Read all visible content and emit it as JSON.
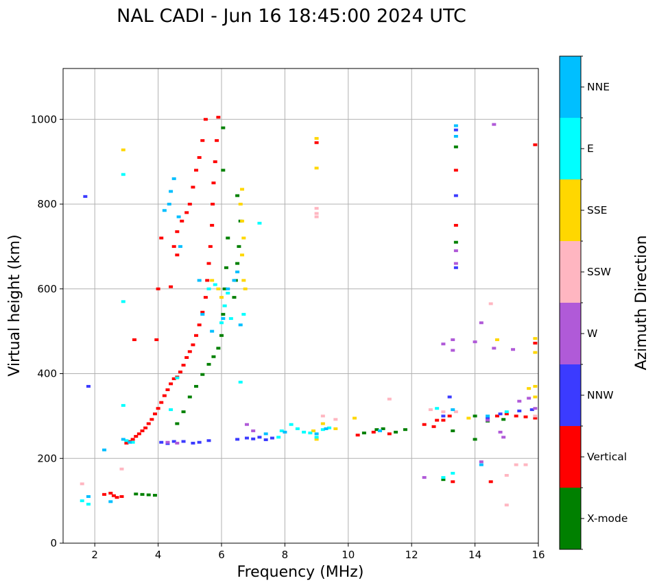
{
  "chart_data": {
    "type": "scatter",
    "title": "NAL CADI - Jun 16 18:45:00 2024 UTC",
    "xlabel": "Frequency (MHz)",
    "ylabel": "Virtual height (km)",
    "xlim": [
      1,
      16
    ],
    "ylim": [
      0,
      1120
    ],
    "xticks": [
      2,
      4,
      6,
      8,
      10,
      12,
      14,
      16
    ],
    "yticks": [
      0,
      200,
      400,
      600,
      800,
      1000
    ],
    "grid": true,
    "colorbar": {
      "label": "Azimuth Direction",
      "categories": [
        {
          "name": "X-mode",
          "color": "#008000"
        },
        {
          "name": "Vertical",
          "color": "#ff0000"
        },
        {
          "name": "NNW",
          "color": "#3b3bff"
        },
        {
          "name": "W",
          "color": "#b05ad8"
        },
        {
          "name": "SSW",
          "color": "#ffb6c1"
        },
        {
          "name": "SSE",
          "color": "#ffd700"
        },
        {
          "name": "E",
          "color": "#00ffff"
        },
        {
          "name": "NNE",
          "color": "#00bfff"
        }
      ]
    },
    "series": [
      {
        "name": "Vertical",
        "color": "#ff0000",
        "points": [
          [
            2.3,
            115
          ],
          [
            2.5,
            118
          ],
          [
            2.6,
            112
          ],
          [
            2.7,
            108
          ],
          [
            2.85,
            110
          ],
          [
            3.0,
            236
          ],
          [
            3.1,
            240
          ],
          [
            3.2,
            245
          ],
          [
            3.3,
            252
          ],
          [
            3.4,
            258
          ],
          [
            3.5,
            265
          ],
          [
            3.6,
            272
          ],
          [
            3.7,
            282
          ],
          [
            3.8,
            292
          ],
          [
            3.9,
            305
          ],
          [
            4.0,
            318
          ],
          [
            4.1,
            332
          ],
          [
            4.2,
            348
          ],
          [
            4.3,
            362
          ],
          [
            4.4,
            376
          ],
          [
            4.5,
            388
          ],
          [
            4.6,
            392
          ],
          [
            4.7,
            404
          ],
          [
            4.8,
            420
          ],
          [
            4.9,
            438
          ],
          [
            5.0,
            452
          ],
          [
            5.1,
            468
          ],
          [
            5.2,
            490
          ],
          [
            5.3,
            515
          ],
          [
            5.4,
            545
          ],
          [
            5.5,
            580
          ],
          [
            5.55,
            620
          ],
          [
            5.6,
            660
          ],
          [
            5.65,
            700
          ],
          [
            5.7,
            750
          ],
          [
            5.72,
            800
          ],
          [
            5.75,
            850
          ],
          [
            5.8,
            900
          ],
          [
            5.85,
            950
          ],
          [
            5.9,
            1005
          ],
          [
            5.5,
            1000
          ],
          [
            5.4,
            950
          ],
          [
            5.3,
            910
          ],
          [
            5.2,
            880
          ],
          [
            5.1,
            840
          ],
          [
            5.0,
            800
          ],
          [
            4.9,
            780
          ],
          [
            4.75,
            760
          ],
          [
            4.6,
            735
          ],
          [
            4.5,
            700
          ],
          [
            4.0,
            600
          ],
          [
            3.95,
            480
          ],
          [
            3.25,
            480
          ],
          [
            4.1,
            720
          ],
          [
            4.4,
            605
          ],
          [
            4.6,
            680
          ],
          [
            14.5,
            145
          ],
          [
            13.3,
            145
          ],
          [
            12.4,
            280
          ],
          [
            12.7,
            275
          ],
          [
            13.0,
            290
          ],
          [
            13.2,
            300
          ],
          [
            13.4,
            880
          ],
          [
            13.4,
            750
          ],
          [
            14.7,
            300
          ],
          [
            15.0,
            305
          ],
          [
            15.3,
            300
          ],
          [
            15.6,
            298
          ],
          [
            15.9,
            295
          ],
          [
            15.9,
            472
          ],
          [
            15.9,
            940
          ],
          [
            10.3,
            255
          ],
          [
            10.8,
            262
          ],
          [
            11.3,
            258
          ],
          [
            9.0,
            945
          ],
          [
            12.8,
            290
          ]
        ]
      },
      {
        "name": "X-mode",
        "color": "#008000",
        "points": [
          [
            3.3,
            116
          ],
          [
            3.5,
            115
          ],
          [
            3.7,
            114
          ],
          [
            3.9,
            113
          ],
          [
            4.6,
            282
          ],
          [
            4.8,
            310
          ],
          [
            5.0,
            345
          ],
          [
            5.2,
            370
          ],
          [
            5.4,
            398
          ],
          [
            5.6,
            422
          ],
          [
            5.75,
            440
          ],
          [
            5.9,
            460
          ],
          [
            6.0,
            490
          ],
          [
            6.05,
            540
          ],
          [
            6.1,
            600
          ],
          [
            6.15,
            650
          ],
          [
            6.2,
            720
          ],
          [
            6.05,
            880
          ],
          [
            6.05,
            980
          ],
          [
            6.4,
            580
          ],
          [
            6.45,
            620
          ],
          [
            6.5,
            660
          ],
          [
            6.55,
            700
          ],
          [
            6.6,
            760
          ],
          [
            6.5,
            820
          ],
          [
            13.4,
            935
          ],
          [
            13.4,
            710
          ],
          [
            10.5,
            260
          ],
          [
            10.9,
            268
          ],
          [
            11.1,
            270
          ],
          [
            11.5,
            262
          ],
          [
            11.8,
            268
          ],
          [
            13.3,
            265
          ],
          [
            14.0,
            300
          ],
          [
            14.4,
            288
          ],
          [
            14.9,
            292
          ],
          [
            13.0,
            150
          ],
          [
            14.0,
            245
          ]
        ]
      },
      {
        "name": "NNW",
        "color": "#3b3bff",
        "points": [
          [
            1.7,
            818
          ],
          [
            1.8,
            370
          ],
          [
            4.1,
            238
          ],
          [
            4.3,
            235
          ],
          [
            4.5,
            240
          ],
          [
            4.8,
            240
          ],
          [
            5.1,
            236
          ],
          [
            5.3,
            238
          ],
          [
            5.6,
            242
          ],
          [
            6.5,
            245
          ],
          [
            6.8,
            248
          ],
          [
            7.0,
            246
          ],
          [
            7.2,
            250
          ],
          [
            7.4,
            244
          ],
          [
            7.6,
            248
          ],
          [
            13.2,
            345
          ],
          [
            13.4,
            820
          ],
          [
            13.4,
            650
          ],
          [
            13.4,
            975
          ],
          [
            14.4,
            295
          ],
          [
            14.8,
            305
          ],
          [
            15.4,
            312
          ],
          [
            15.8,
            315
          ],
          [
            13.0,
            300
          ]
        ]
      },
      {
        "name": "W",
        "color": "#b05ad8",
        "points": [
          [
            4.3,
            238
          ],
          [
            4.6,
            236
          ],
          [
            12.4,
            155
          ],
          [
            13.0,
            470
          ],
          [
            13.3,
            480
          ],
          [
            13.3,
            455
          ],
          [
            13.4,
            690
          ],
          [
            14.0,
            475
          ],
          [
            14.2,
            520
          ],
          [
            14.4,
            290
          ],
          [
            14.6,
            460
          ],
          [
            14.8,
            262
          ],
          [
            14.9,
            250
          ],
          [
            15.4,
            335
          ],
          [
            15.7,
            342
          ],
          [
            15.9,
            318
          ],
          [
            14.2,
            192
          ],
          [
            14.6,
            988
          ],
          [
            15.2,
            457
          ],
          [
            13.4,
            660
          ],
          [
            6.8,
            280
          ],
          [
            7.0,
            265
          ]
        ]
      },
      {
        "name": "SSW",
        "color": "#ffb6c1",
        "points": [
          [
            1.6,
            140
          ],
          [
            2.85,
            175
          ],
          [
            9.0,
            770
          ],
          [
            9.0,
            778
          ],
          [
            9.0,
            790
          ],
          [
            9.2,
            300
          ],
          [
            9.6,
            292
          ],
          [
            11.3,
            340
          ],
          [
            12.6,
            315
          ],
          [
            13.4,
            310
          ],
          [
            14.5,
            565
          ],
          [
            15.0,
            160
          ],
          [
            15.0,
            90
          ],
          [
            15.3,
            185
          ],
          [
            15.6,
            185
          ],
          [
            15.9,
            300
          ],
          [
            13.0,
            310
          ]
        ]
      },
      {
        "name": "SSE",
        "color": "#ffd700",
        "points": [
          [
            2.9,
            928
          ],
          [
            5.7,
            620
          ],
          [
            5.9,
            600
          ],
          [
            6.0,
            580
          ],
          [
            6.1,
            560
          ],
          [
            6.6,
            800
          ],
          [
            6.65,
            760
          ],
          [
            6.7,
            720
          ],
          [
            6.65,
            680
          ],
          [
            6.7,
            620
          ],
          [
            6.75,
            600
          ],
          [
            6.65,
            835
          ],
          [
            8.9,
            265
          ],
          [
            9.0,
            245
          ],
          [
            9.2,
            282
          ],
          [
            9.6,
            270
          ],
          [
            9.0,
            955
          ],
          [
            9.0,
            885
          ],
          [
            10.2,
            295
          ],
          [
            14.7,
            480
          ],
          [
            15.9,
            483
          ],
          [
            15.9,
            450
          ],
          [
            15.9,
            370
          ],
          [
            15.9,
            345
          ],
          [
            15.7,
            365
          ],
          [
            13.8,
            295
          ]
        ]
      },
      {
        "name": "E",
        "color": "#00ffff",
        "points": [
          [
            1.6,
            100
          ],
          [
            1.8,
            92
          ],
          [
            2.9,
            325
          ],
          [
            2.9,
            870
          ],
          [
            2.9,
            570
          ],
          [
            3.0,
            242
          ],
          [
            3.2,
            238
          ],
          [
            4.4,
            315
          ],
          [
            4.6,
            390
          ],
          [
            5.6,
            600
          ],
          [
            5.8,
            610
          ],
          [
            6.0,
            520
          ],
          [
            6.1,
            560
          ],
          [
            6.2,
            590
          ],
          [
            6.3,
            530
          ],
          [
            6.7,
            540
          ],
          [
            7.2,
            755
          ],
          [
            7.8,
            250
          ],
          [
            7.9,
            265
          ],
          [
            8.2,
            280
          ],
          [
            8.4,
            270
          ],
          [
            8.6,
            262
          ],
          [
            8.8,
            260
          ],
          [
            9.0,
            250
          ],
          [
            9.2,
            268
          ],
          [
            9.4,
            272
          ],
          [
            13.3,
            165
          ],
          [
            13.0,
            155
          ],
          [
            15.0,
            310
          ],
          [
            12.8,
            318
          ],
          [
            6.6,
            380
          ]
        ]
      },
      {
        "name": "NNE",
        "color": "#00bfff",
        "points": [
          [
            1.8,
            110
          ],
          [
            2.3,
            220
          ],
          [
            2.5,
            98
          ],
          [
            2.9,
            245
          ],
          [
            3.1,
            238
          ],
          [
            4.2,
            785
          ],
          [
            4.35,
            800
          ],
          [
            4.4,
            830
          ],
          [
            4.5,
            860
          ],
          [
            4.65,
            770
          ],
          [
            4.7,
            700
          ],
          [
            5.3,
            620
          ],
          [
            5.4,
            540
          ],
          [
            5.7,
            500
          ],
          [
            6.05,
            530
          ],
          [
            6.2,
            600
          ],
          [
            6.4,
            620
          ],
          [
            6.5,
            640
          ],
          [
            6.6,
            515
          ],
          [
            7.4,
            258
          ],
          [
            8.0,
            262
          ],
          [
            9.0,
            258
          ],
          [
            13.3,
            315
          ],
          [
            13.4,
            960
          ],
          [
            13.4,
            985
          ],
          [
            14.2,
            185
          ],
          [
            14.4,
            300
          ],
          [
            11.0,
            265
          ],
          [
            9.3,
            270
          ]
        ]
      }
    ]
  }
}
